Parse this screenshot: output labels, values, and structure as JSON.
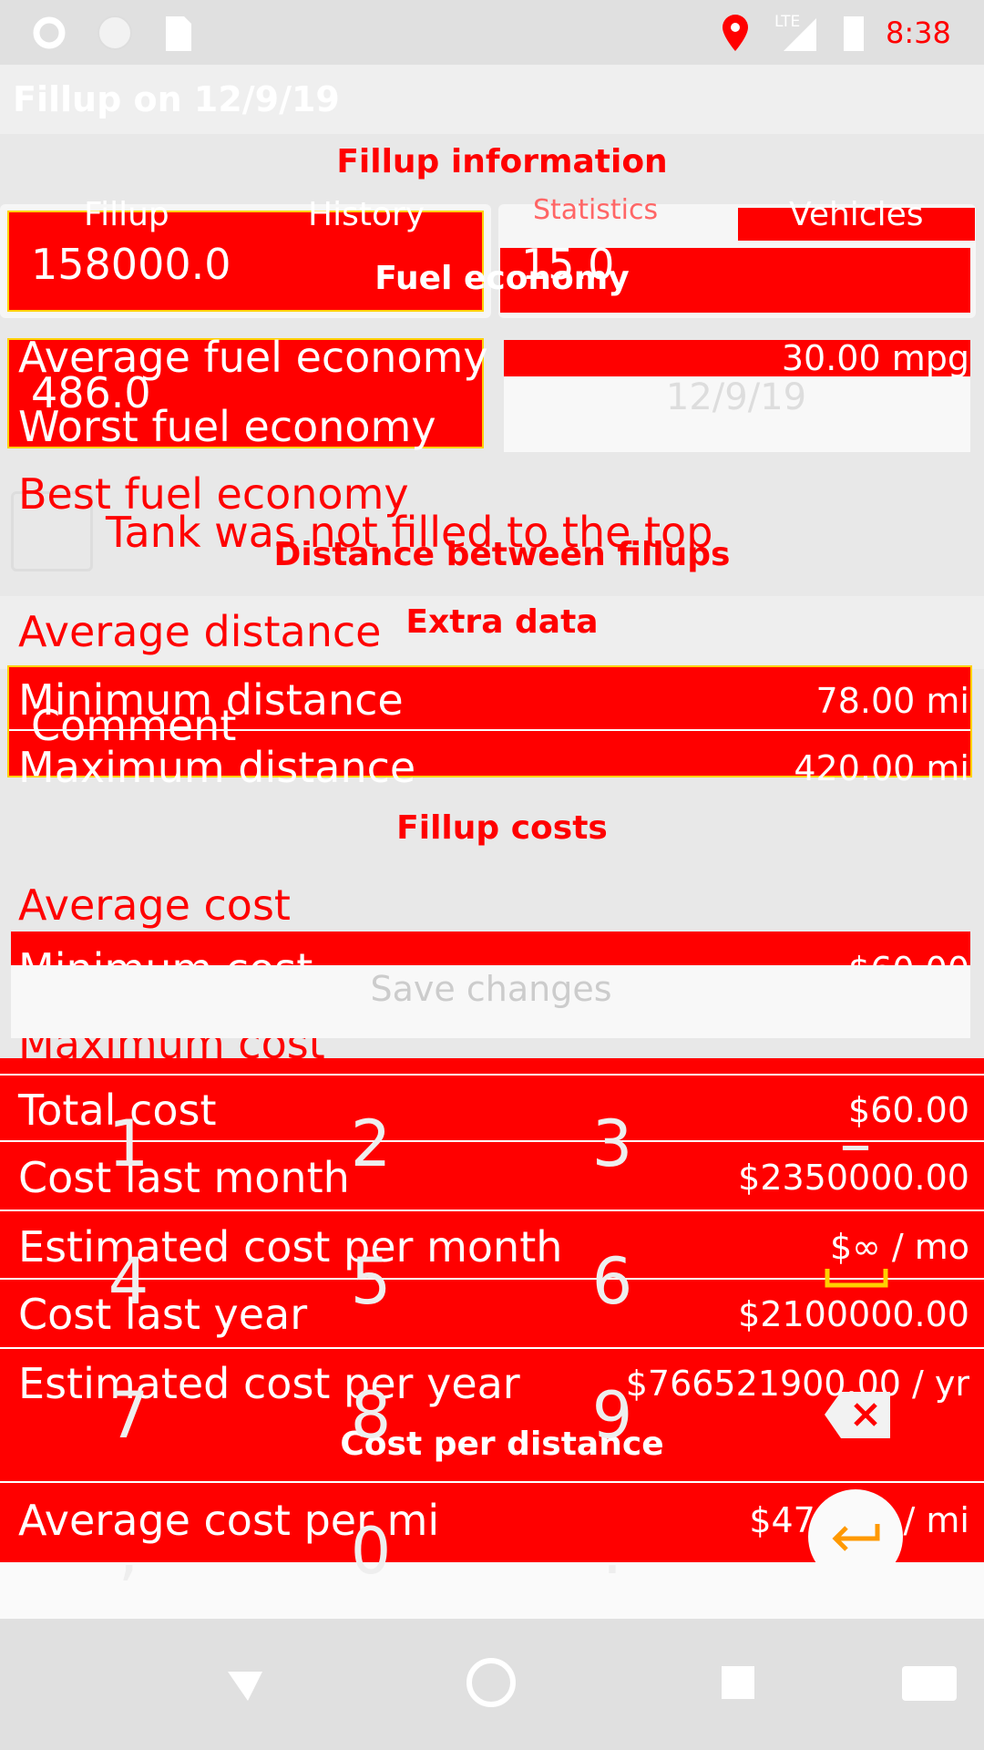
{
  "status_bar": {
    "time": "8:38",
    "network": "LTE"
  },
  "app_bar": {
    "title": "Fillup on 12/9/19"
  },
  "form": {
    "section_title": "Fillup information",
    "odometer": "158000.0",
    "volume": "15.0",
    "price": "486.0",
    "date": "12/9/19",
    "partial_checkbox": "Tank was not filled to the top",
    "extra_section": "Extra data",
    "comment_hint": "Comment",
    "save_button": "Save changes"
  },
  "tabs": [
    "Fillup",
    "History",
    "Statistics",
    "Vehicles"
  ],
  "statistics": {
    "sections": [
      {
        "title": "Fuel economy",
        "rows": [
          {
            "label": "Average fuel economy",
            "value": "30.00 mpg"
          },
          {
            "label": "Worst fuel economy"
          },
          {
            "label": "Best fuel economy"
          }
        ]
      },
      {
        "title": "Distance between fillups",
        "rows": [
          {
            "label": "Average distance"
          },
          {
            "label": "Minimum distance",
            "value": "78.00 mi"
          },
          {
            "label": "Maximum distance",
            "value": "420.00 mi"
          }
        ]
      },
      {
        "title": "Fillup costs",
        "rows": [
          {
            "label": "Average cost"
          },
          {
            "label": "Minimum cost",
            "value": "$60.00"
          },
          {
            "label": "Maximum cost"
          },
          {
            "label": "Total cost",
            "value": "$60.00"
          },
          {
            "label": "Cost last month",
            "value": "$2350000.00"
          },
          {
            "label": "Estimated cost per month",
            "value": "$∞ / mo"
          },
          {
            "label": "Cost last year",
            "value": "$2100000.00"
          },
          {
            "label": "Estimated cost per year",
            "value": "$766521900.00 / yr"
          }
        ]
      },
      {
        "title": "Cost per distance",
        "rows": [
          {
            "label": "Average cost per mi",
            "value": "$471.00 / mi"
          }
        ]
      }
    ]
  },
  "keypad": [
    "1",
    "2",
    "3",
    "–",
    "4",
    "5",
    "6",
    "7",
    "8",
    "9",
    ",",
    "0",
    "."
  ]
}
